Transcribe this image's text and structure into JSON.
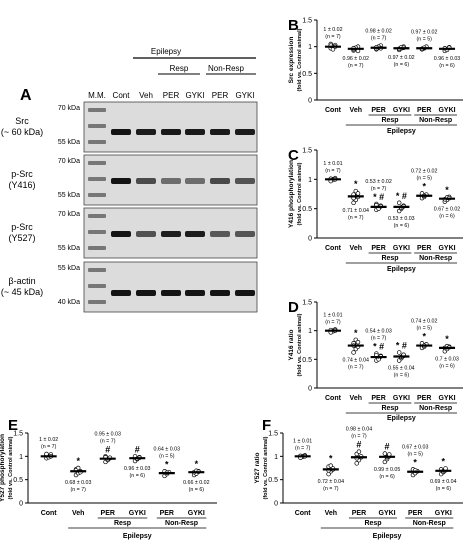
{
  "panel_labels": {
    "A": "A",
    "B": "B",
    "C": "C",
    "D": "D",
    "E": "E",
    "F": "F"
  },
  "blot": {
    "lane_labels": [
      "M.M.",
      "Cont",
      "Veh",
      "PER",
      "GYKI",
      "PER",
      "GYKI"
    ],
    "group_epilepsy": "Epilepsy",
    "group_resp": "Resp",
    "group_nonresp": "Non-Resp",
    "rows": [
      {
        "label1": "Src",
        "label2": "(~ 60 kDa)",
        "kda_top": "70 kDa",
        "kda_bot": "55 kDa"
      },
      {
        "label1": "p-Src",
        "label2": "(Y416)",
        "kda_top": "70 kDa",
        "kda_bot": "55 kDa"
      },
      {
        "label1": "p-Src",
        "label2": "(Y527)",
        "kda_top": "70 kDa",
        "kda_bot": "55 kDa"
      },
      {
        "label1": "β-actin",
        "label2": "(~ 45 kDa)",
        "kda_top": "55 kDa",
        "kda_bot": "40 kDa"
      }
    ],
    "band_intensity": [
      [
        1,
        0.96,
        0.98,
        0.97,
        0.97,
        0.96
      ],
      [
        1,
        0.71,
        0.53,
        0.53,
        0.72,
        0.67
      ],
      [
        1,
        0.68,
        0.95,
        0.96,
        0.64,
        0.66
      ],
      [
        1,
        1,
        1,
        1,
        1,
        1
      ]
    ]
  },
  "chart_data": [
    {
      "panel": "B",
      "type": "scatter",
      "ylabel": "Src expression",
      "ylabel2": "(fold vs. Control animal)",
      "ylim": [
        0,
        1.5
      ],
      "yticks": [
        "0",
        "0.5",
        "1",
        "1.5"
      ],
      "categories": [
        "Cont",
        "Veh",
        "PER",
        "GYKI",
        "PER",
        "GYKI"
      ],
      "groups": {
        "resp": "Resp",
        "nonresp": "Non-Resp",
        "epilepsy": "Epilepsy"
      },
      "means": [
        1,
        0.96,
        0.98,
        0.97,
        0.97,
        0.96
      ],
      "sem": [
        0.02,
        0.02,
        0.02,
        0.02,
        0.02,
        0.03
      ],
      "value_labels": [
        "1 ± 0.02",
        "0.96 ± 0.02",
        "0.98 ± 0.02",
        "0.97 ± 0.02",
        "0.97 ± 0.02",
        "0.96 ± 0.03"
      ],
      "n_labels": [
        "(n = 7)",
        "(n = 7)",
        "(n = 7)",
        "(n = 6)",
        "(n = 5)",
        "(n = 6)"
      ],
      "label_above": [
        true,
        false,
        true,
        false,
        true,
        false
      ],
      "marks": [
        "",
        "",
        "",
        "",
        "",
        ""
      ],
      "points": [
        [
          0.97,
          1.0,
          1.03,
          1.05,
          0.95,
          1.0,
          1.02
        ],
        [
          0.93,
          0.96,
          1.0,
          0.95,
          0.98,
          0.92,
          0.97
        ],
        [
          0.95,
          0.98,
          1.02,
          0.96,
          1.0,
          0.97,
          0.99
        ],
        [
          0.94,
          0.97,
          1.0,
          0.96,
          0.99,
          0.98
        ],
        [
          0.95,
          0.97,
          1.0,
          0.96,
          0.98
        ],
        [
          0.92,
          0.95,
          0.99,
          0.97,
          0.94,
          0.98
        ]
      ]
    },
    {
      "panel": "C",
      "type": "scatter",
      "ylabel": "Y416 phosphorylation",
      "ylabel2": "(fold vs. Control animal)",
      "ylim": [
        0,
        1.5
      ],
      "yticks": [
        "0",
        "0.5",
        "1",
        "1.5"
      ],
      "categories": [
        "Cont",
        "Veh",
        "PER",
        "GYKI",
        "PER",
        "GYKI"
      ],
      "groups": {
        "resp": "Resp",
        "nonresp": "Non-Resp",
        "epilepsy": "Epilepsy"
      },
      "means": [
        1,
        0.71,
        0.53,
        0.53,
        0.72,
        0.67
      ],
      "sem": [
        0.01,
        0.04,
        0.02,
        0.03,
        0.02,
        0.02
      ],
      "value_labels": [
        "1 ± 0.01",
        "0.71 ± 0.04",
        "0.53 ± 0.02",
        "0.53 ± 0.03",
        "0.72 ± 0.02",
        "0.67 ± 0.02"
      ],
      "n_labels": [
        "(n = 7)",
        "(n = 7)",
        "(n = 7)",
        "(n = 6)",
        "(n = 5)",
        "(n = 6)"
      ],
      "label_above": [
        true,
        false,
        true,
        false,
        true,
        false
      ],
      "marks": [
        "",
        "*",
        "* #",
        "* #",
        "*",
        "*"
      ],
      "points": [
        [
          0.98,
          1.0,
          1.02,
          1.01,
          0.99,
          1.0,
          0.97
        ],
        [
          0.6,
          0.65,
          0.7,
          0.74,
          0.8,
          0.76,
          0.68
        ],
        [
          0.48,
          0.52,
          0.55,
          0.58,
          0.5,
          0.54,
          0.56
        ],
        [
          0.46,
          0.5,
          0.55,
          0.6,
          0.52,
          0.54
        ],
        [
          0.68,
          0.7,
          0.74,
          0.76,
          0.72
        ],
        [
          0.62,
          0.65,
          0.7,
          0.66,
          0.69,
          0.68
        ]
      ]
    },
    {
      "panel": "D",
      "type": "scatter",
      "ylabel": "Y416 ratio",
      "ylabel2": "(fold vs. Control animal)",
      "ylim": [
        0,
        1.5
      ],
      "yticks": [
        "0",
        "0.5",
        "1",
        "1.5"
      ],
      "categories": [
        "Cont",
        "Veh",
        "PER",
        "GYKI",
        "PER",
        "GYKI"
      ],
      "groups": {
        "resp": "Resp",
        "nonresp": "Non-Resp",
        "epilepsy": "Epilepsy"
      },
      "means": [
        1,
        0.74,
        0.54,
        0.55,
        0.74,
        0.7
      ],
      "sem": [
        0.01,
        0.04,
        0.03,
        0.04,
        0.02,
        0.03
      ],
      "value_labels": [
        "1 ± 0.01",
        "0.74 ± 0.04",
        "0.54 ± 0.03",
        "0.55 ± 0.04",
        "0.74 ± 0.02",
        "0.7 ± 0.03"
      ],
      "n_labels": [
        "(n = 7)",
        "(n = 7)",
        "(n = 7)",
        "(n = 6)",
        "(n = 5)",
        "(n = 6)"
      ],
      "label_above": [
        true,
        false,
        true,
        false,
        true,
        false
      ],
      "marks": [
        "",
        "*",
        "* #",
        "* #",
        "*",
        "*"
      ],
      "points": [
        [
          0.98,
          1.0,
          1.02,
          1.01,
          0.99,
          1.0,
          0.97
        ],
        [
          0.62,
          0.68,
          0.72,
          0.78,
          0.84,
          0.8,
          0.74
        ],
        [
          0.48,
          0.52,
          0.56,
          0.6,
          0.5,
          0.55,
          0.57
        ],
        [
          0.48,
          0.52,
          0.56,
          0.62,
          0.54,
          0.58
        ],
        [
          0.7,
          0.72,
          0.76,
          0.78,
          0.74
        ],
        [
          0.64,
          0.68,
          0.72,
          0.7,
          0.73,
          0.71
        ]
      ]
    },
    {
      "panel": "E",
      "type": "scatter",
      "ylabel": "Y527 phosphorylation",
      "ylabel2": "(fold vs. Control animal)",
      "ylim": [
        0,
        1.5
      ],
      "yticks": [
        "0",
        "0.5",
        "1",
        "1.5"
      ],
      "categories": [
        "Cont",
        "Veh",
        "PER",
        "GYKI",
        "PER",
        "GYKI"
      ],
      "groups": {
        "resp": "Resp",
        "nonresp": "Non-Resp",
        "epilepsy": "Epilepsy"
      },
      "means": [
        1,
        0.68,
        0.95,
        0.96,
        0.64,
        0.66
      ],
      "sem": [
        0.02,
        0.03,
        0.03,
        0.03,
        0.03,
        0.02
      ],
      "value_labels": [
        "1 ± 0.02",
        "0.68 ± 0.03",
        "0.95 ± 0.03",
        "0.96 ± 0.03",
        "0.64 ± 0.03",
        "0.66 ± 0.02"
      ],
      "n_labels": [
        "(n = 7)",
        "(n = 7)",
        "(n = 7)",
        "(n = 6)",
        "(n = 5)",
        "(n = 6)"
      ],
      "label_above": [
        true,
        false,
        true,
        false,
        true,
        false
      ],
      "marks": [
        "",
        "*",
        "#",
        "#",
        "*",
        "*"
      ],
      "points": [
        [
          0.96,
          1.0,
          1.04,
          1.02,
          0.98,
          1.0,
          1.05
        ],
        [
          0.6,
          0.64,
          0.68,
          0.72,
          0.75,
          0.66,
          0.7
        ],
        [
          0.88,
          0.92,
          0.96,
          1.0,
          0.94,
          0.97,
          0.98
        ],
        [
          0.9,
          0.94,
          0.98,
          1.0,
          0.95,
          0.97
        ],
        [
          0.58,
          0.62,
          0.66,
          0.68,
          0.65
        ],
        [
          0.6,
          0.63,
          0.68,
          0.66,
          0.69,
          0.67
        ]
      ]
    },
    {
      "panel": "F",
      "type": "scatter",
      "ylabel": "Y527 ratio",
      "ylabel2": "(fold vs. Control animal)",
      "ylim": [
        0,
        1.5
      ],
      "yticks": [
        "0",
        "0.5",
        "1",
        "1.5"
      ],
      "categories": [
        "Cont",
        "Veh",
        "PER",
        "GYKI",
        "PER",
        "GYKI"
      ],
      "groups": {
        "resp": "Resp",
        "nonresp": "Non-Resp",
        "epilepsy": "Epilepsy"
      },
      "means": [
        1,
        0.72,
        0.98,
        0.99,
        0.67,
        0.69
      ],
      "sem": [
        0.01,
        0.04,
        0.04,
        0.05,
        0.03,
        0.04
      ],
      "value_labels": [
        "1 ± 0.01",
        "0.72 ± 0.04",
        "0.98 ± 0.04",
        "0.99 ± 0.05",
        "0.67 ± 0.03",
        "0.69 ± 0.04"
      ],
      "n_labels": [
        "(n = 7)",
        "(n = 7)",
        "(n = 7)",
        "(n = 6)",
        "(n = 5)",
        "(n = 6)"
      ],
      "label_above": [
        true,
        false,
        true,
        false,
        true,
        false
      ],
      "marks": [
        "",
        "*",
        "#",
        "#",
        "*",
        "*"
      ],
      "points": [
        [
          0.98,
          1.0,
          1.02,
          1.01,
          0.99,
          1.0,
          0.97
        ],
        [
          0.62,
          0.68,
          0.72,
          0.78,
          0.8,
          0.74,
          0.7
        ],
        [
          0.85,
          0.92,
          0.98,
          1.05,
          1.1,
          1.0,
          0.96
        ],
        [
          0.88,
          0.94,
          1.0,
          1.06,
          0.98,
          1.04
        ],
        [
          0.6,
          0.64,
          0.68,
          0.72,
          0.7
        ],
        [
          0.62,
          0.66,
          0.7,
          0.72,
          0.68,
          0.74
        ]
      ]
    }
  ]
}
